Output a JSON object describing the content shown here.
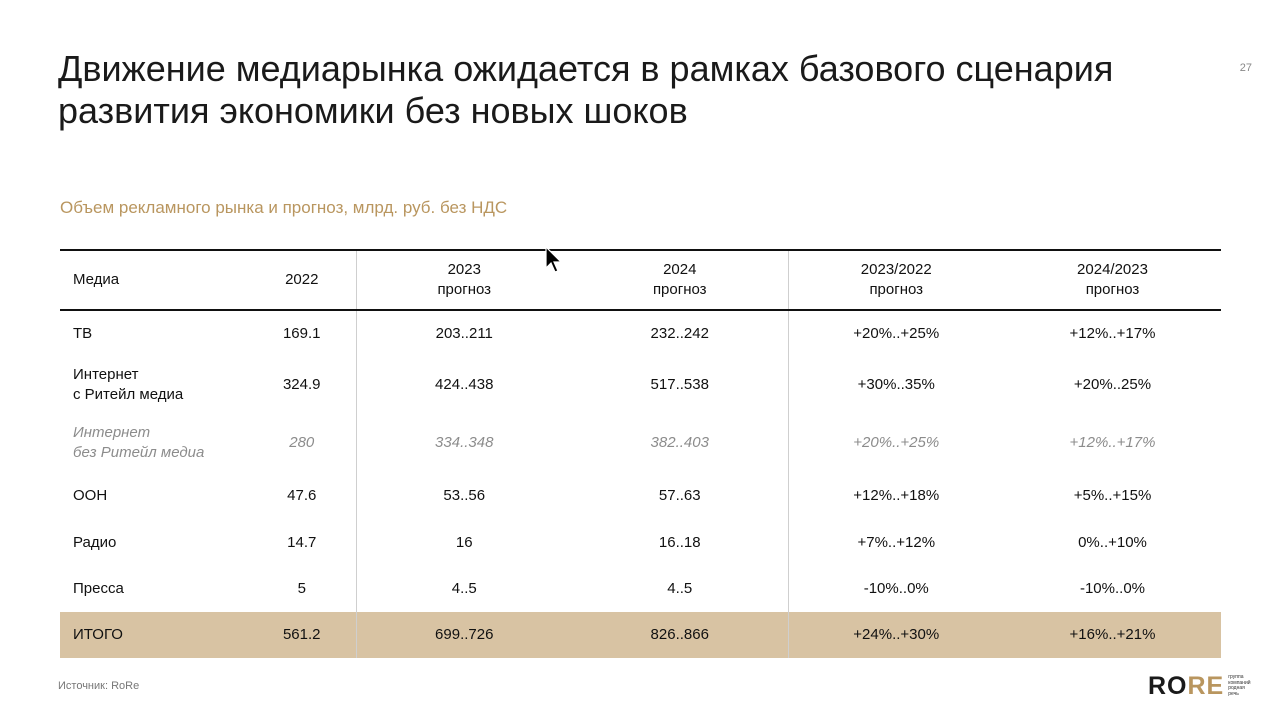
{
  "slide": {
    "title_line1": "Движение медиарынка ожидается в рамках базового сценария",
    "title_line2": "развития экономики без новых шоков",
    "page_number": "27",
    "subtitle": "Объем рекламного рынка и прогноз, млрд. руб. без НДС",
    "source": "Источник: RoRe"
  },
  "table": {
    "headers": [
      {
        "line1": "Медиа",
        "line2": ""
      },
      {
        "line1": "2022",
        "line2": ""
      },
      {
        "line1": "2023",
        "line2": "прогноз"
      },
      {
        "line1": "2024",
        "line2": "прогноз"
      },
      {
        "line1": "2023/2022",
        "line2": "прогноз"
      },
      {
        "line1": "2024/2023",
        "line2": "прогноз"
      }
    ],
    "rows": [
      {
        "media_line1": "ТВ",
        "media_line2": "",
        "cells": [
          "169.1",
          "203..211",
          "232..242",
          "+20%..+25%",
          "+12%..+17%"
        ]
      },
      {
        "media_line1": "Интернет",
        "media_line2": "с Ритейл медиа",
        "cells": [
          "324.9",
          "424..438",
          "517..538",
          "+30%..35%",
          "+20%..25%"
        ]
      },
      {
        "media_line1": "Интернет",
        "media_line2": "без Ритейл медиа",
        "cells": [
          "280",
          "334..348",
          "382..403",
          "+20%..+25%",
          "+12%..+17%"
        ]
      },
      {
        "media_line1": "OOH",
        "media_line2": "",
        "cells": [
          "47.6",
          "53..56",
          "57..63",
          "+12%..+18%",
          "+5%..+15%"
        ]
      },
      {
        "media_line1": "Радио",
        "media_line2": "",
        "cells": [
          "14.7",
          "16",
          "16..18",
          "+7%..+12%",
          "0%..+10%"
        ]
      },
      {
        "media_line1": "Пресса",
        "media_line2": "",
        "cells": [
          "5",
          "4..5",
          "4..5",
          "-10%..0%",
          "-10%..0%"
        ]
      },
      {
        "media_line1": "ИТОГО",
        "media_line2": "",
        "cells": [
          "561.2",
          "699..726",
          "826..866",
          "+24%..+30%",
          "+16%..+21%"
        ]
      }
    ]
  },
  "logo": {
    "word_start": "RO",
    "word_accent": "RE",
    "tagline_1": "группа",
    "tagline_2": "компаний",
    "tagline_3": "родная",
    "tagline_4": "речь"
  },
  "colors": {
    "accent": "#b9965f",
    "total_row_bg": "#d8c3a3"
  },
  "icons": [
    "mouse-cursor-icon"
  ]
}
